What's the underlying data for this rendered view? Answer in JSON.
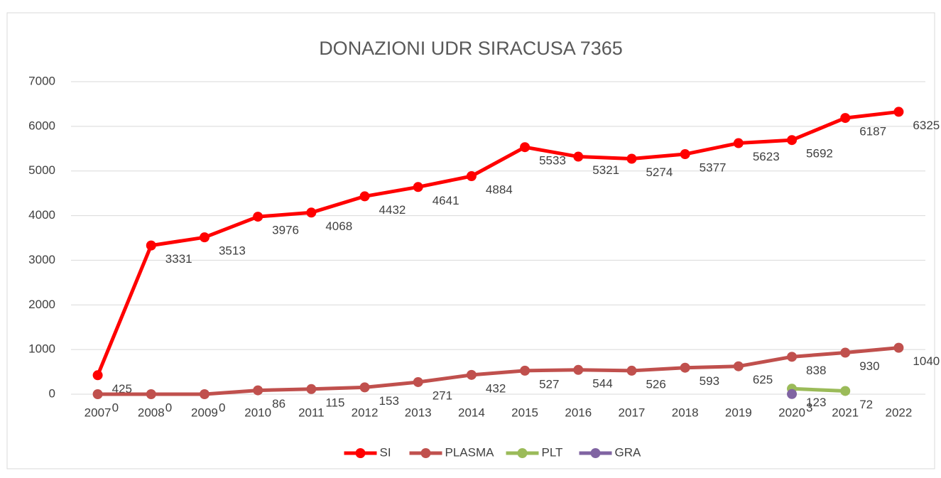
{
  "chart_data": {
    "type": "line",
    "title": "DONAZIONI UDR SIRACUSA 7365",
    "categories": [
      "2007",
      "2008",
      "2009",
      "2010",
      "2011",
      "2012",
      "2013",
      "2014",
      "2015",
      "2016",
      "2017",
      "2018",
      "2019",
      "2020",
      "2021",
      "2022"
    ],
    "series": [
      {
        "name": "SI",
        "color": "#ff0000",
        "values": [
          425,
          3331,
          3513,
          3976,
          4068,
          4432,
          4641,
          4884,
          5533,
          5321,
          5274,
          5377,
          5623,
          5692,
          6187,
          6325
        ]
      },
      {
        "name": "PLASMA",
        "color": "#c0504d",
        "values": [
          0,
          0,
          0,
          86,
          115,
          153,
          271,
          432,
          527,
          544,
          526,
          593,
          625,
          838,
          930,
          1040
        ]
      },
      {
        "name": "PLT",
        "color": "#9bbb59",
        "values": [
          null,
          null,
          null,
          null,
          null,
          null,
          null,
          null,
          null,
          null,
          null,
          null,
          null,
          123,
          72,
          null
        ]
      },
      {
        "name": "GRA",
        "color": "#8064a2",
        "values": [
          null,
          null,
          null,
          null,
          null,
          null,
          null,
          null,
          null,
          null,
          null,
          null,
          null,
          3,
          null,
          null
        ]
      }
    ],
    "ylim": [
      0,
      7000
    ],
    "yticks": [
      0,
      1000,
      2000,
      3000,
      4000,
      5000,
      6000,
      7000
    ],
    "grid": true,
    "legend": "bottom"
  }
}
